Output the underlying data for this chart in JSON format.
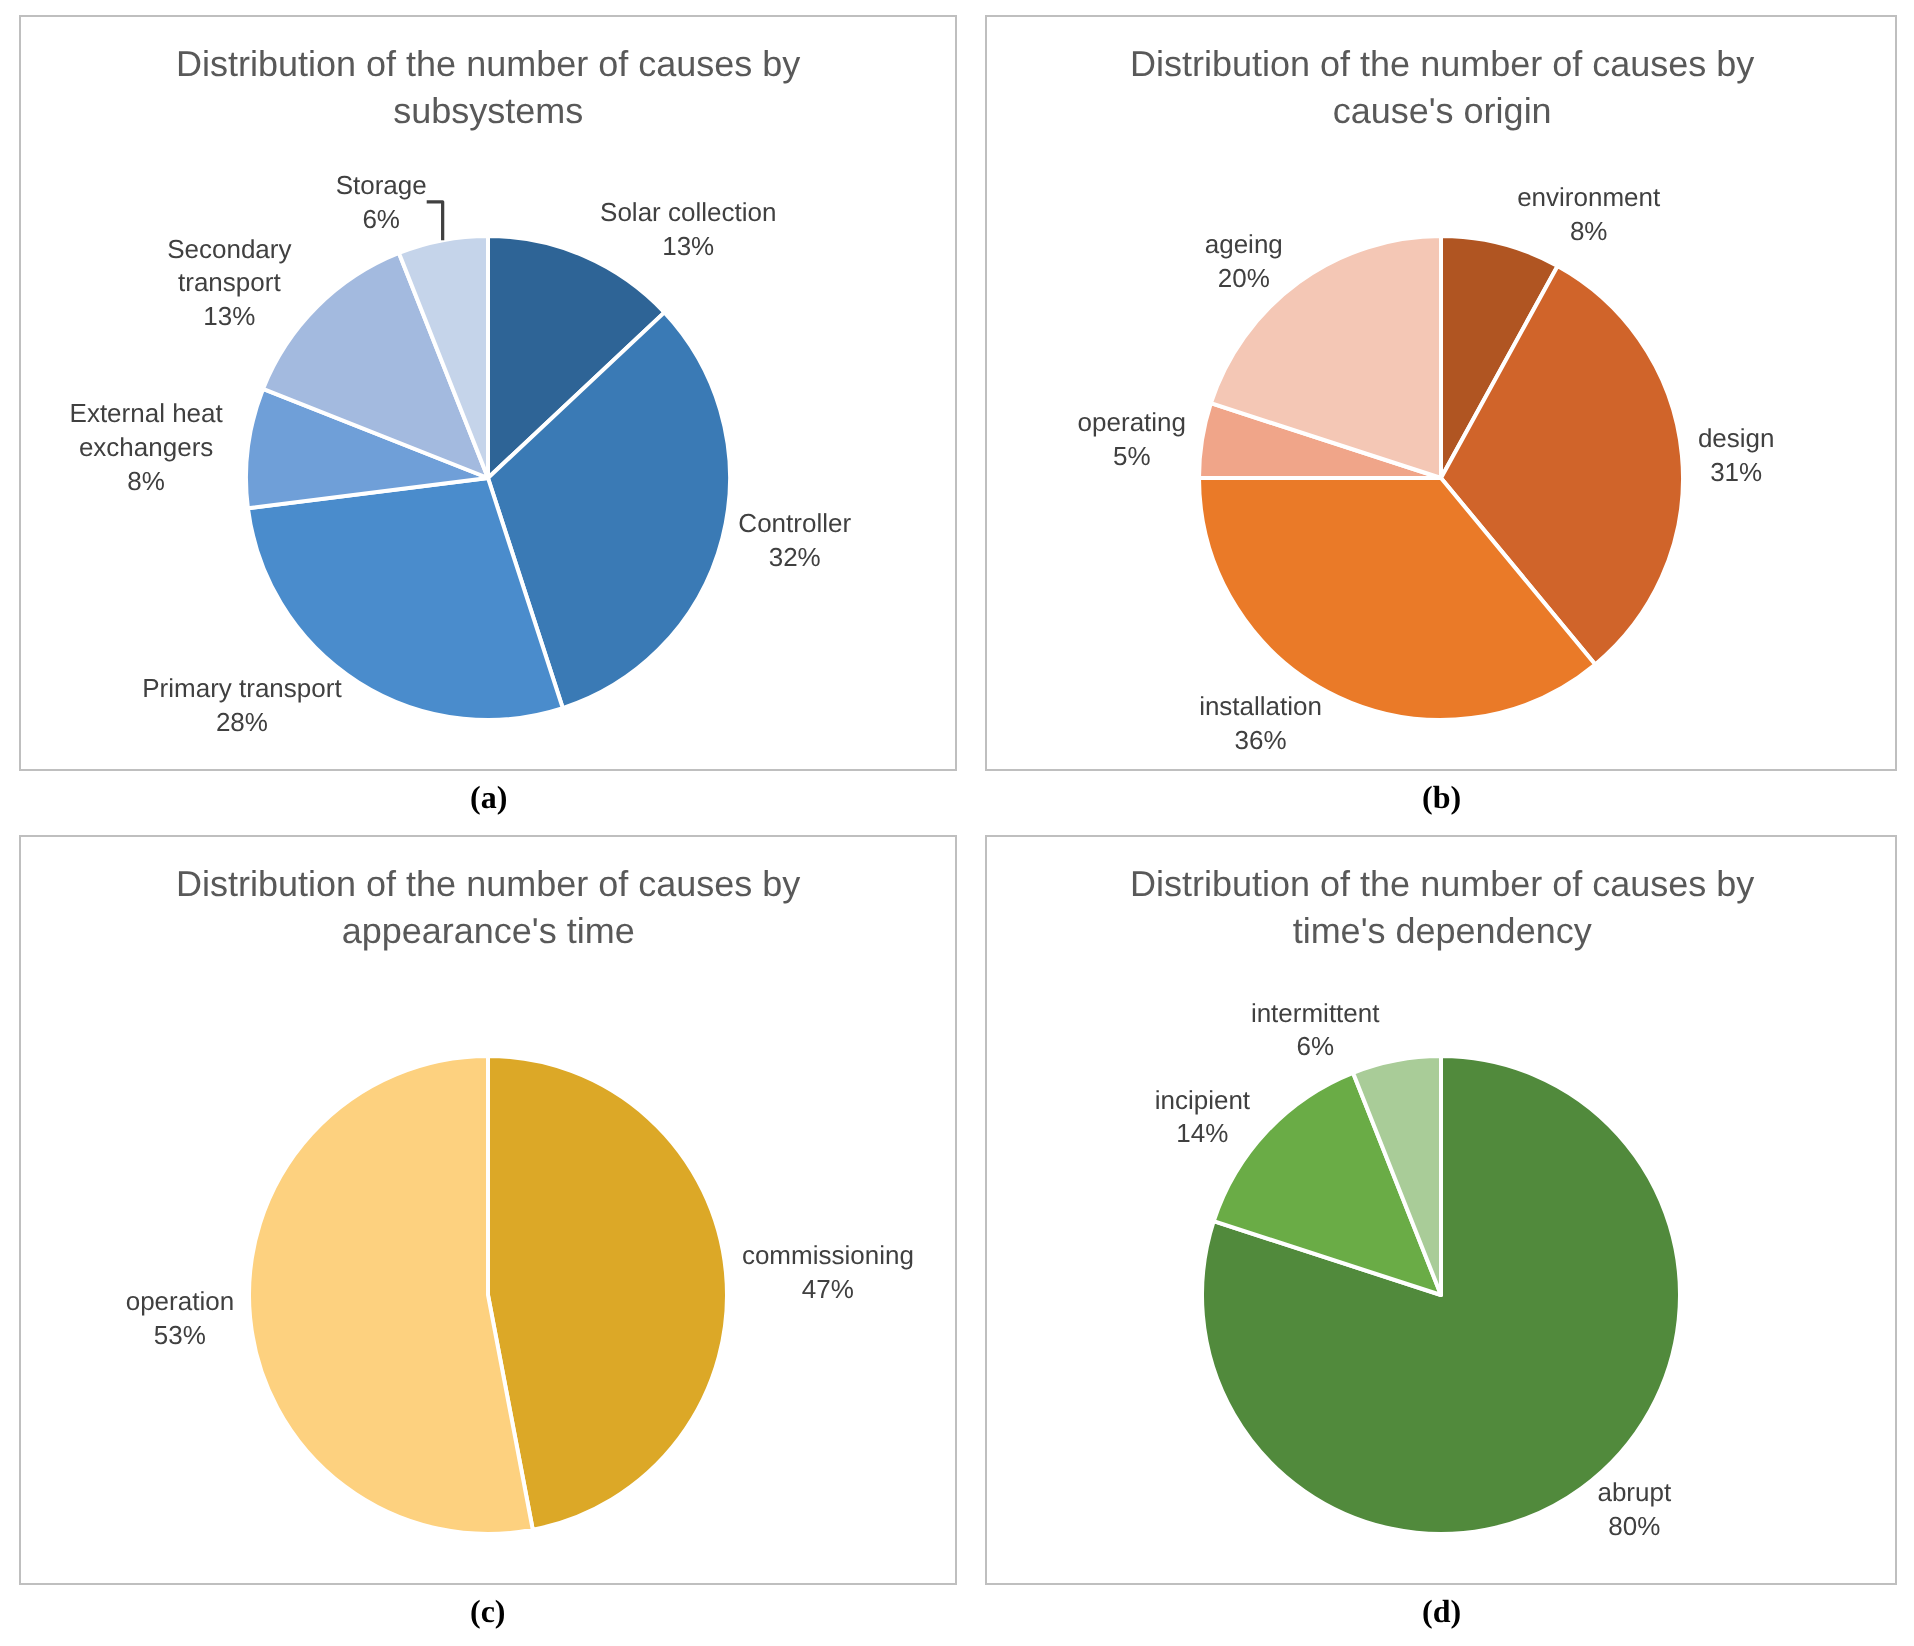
{
  "chart_data": [
    {
      "type": "pie",
      "title": "Distribution of the number of causes by subsystems",
      "categories": [
        "Solar collection",
        "Controller",
        "Primary transport",
        "External heat exchangers",
        "Secondary transport",
        "Storage"
      ],
      "values": [
        13,
        32,
        28,
        8,
        13,
        6
      ],
      "value_labels": [
        "13%",
        "32%",
        "28%",
        "8%",
        "13%",
        "6%"
      ],
      "colors": [
        "#2e6496",
        "#3a7ab5",
        "#4a8ccc",
        "#6f9fd8",
        "#a3badf",
        "#c5d4ea"
      ],
      "annotations": [
        "(a)"
      ]
    },
    {
      "type": "pie",
      "title": "Distribution of the number of causes by cause's origin",
      "categories": [
        "environment",
        "design",
        "installation",
        "operating",
        "ageing"
      ],
      "values": [
        8,
        31,
        36,
        5,
        20
      ],
      "value_labels": [
        "8%",
        "31%",
        "36%",
        "5%",
        "20%"
      ],
      "colors": [
        "#b05522",
        "#d0642a",
        "#ea7a28",
        "#f0a589",
        "#f4c7b5"
      ],
      "annotations": [
        "(b)"
      ]
    },
    {
      "type": "pie",
      "title": "Distribution of the number of causes by appearance's time",
      "categories": [
        "commissioning",
        "operation"
      ],
      "values": [
        47,
        53
      ],
      "value_labels": [
        "47%",
        "53%"
      ],
      "colors": [
        "#dca827",
        "#fdd17f"
      ],
      "annotations": [
        "(c)"
      ]
    },
    {
      "type": "pie",
      "title": "Distribution of the number of causes by time's dependency",
      "categories": [
        "abrupt",
        "incipient",
        "intermittent"
      ],
      "values": [
        80,
        14,
        6
      ],
      "value_labels": [
        "80%",
        "14%",
        "6%"
      ],
      "colors": [
        "#518a3c",
        "#6aac46",
        "#a9cc98"
      ],
      "annotations": [
        "(d)"
      ]
    }
  ]
}
